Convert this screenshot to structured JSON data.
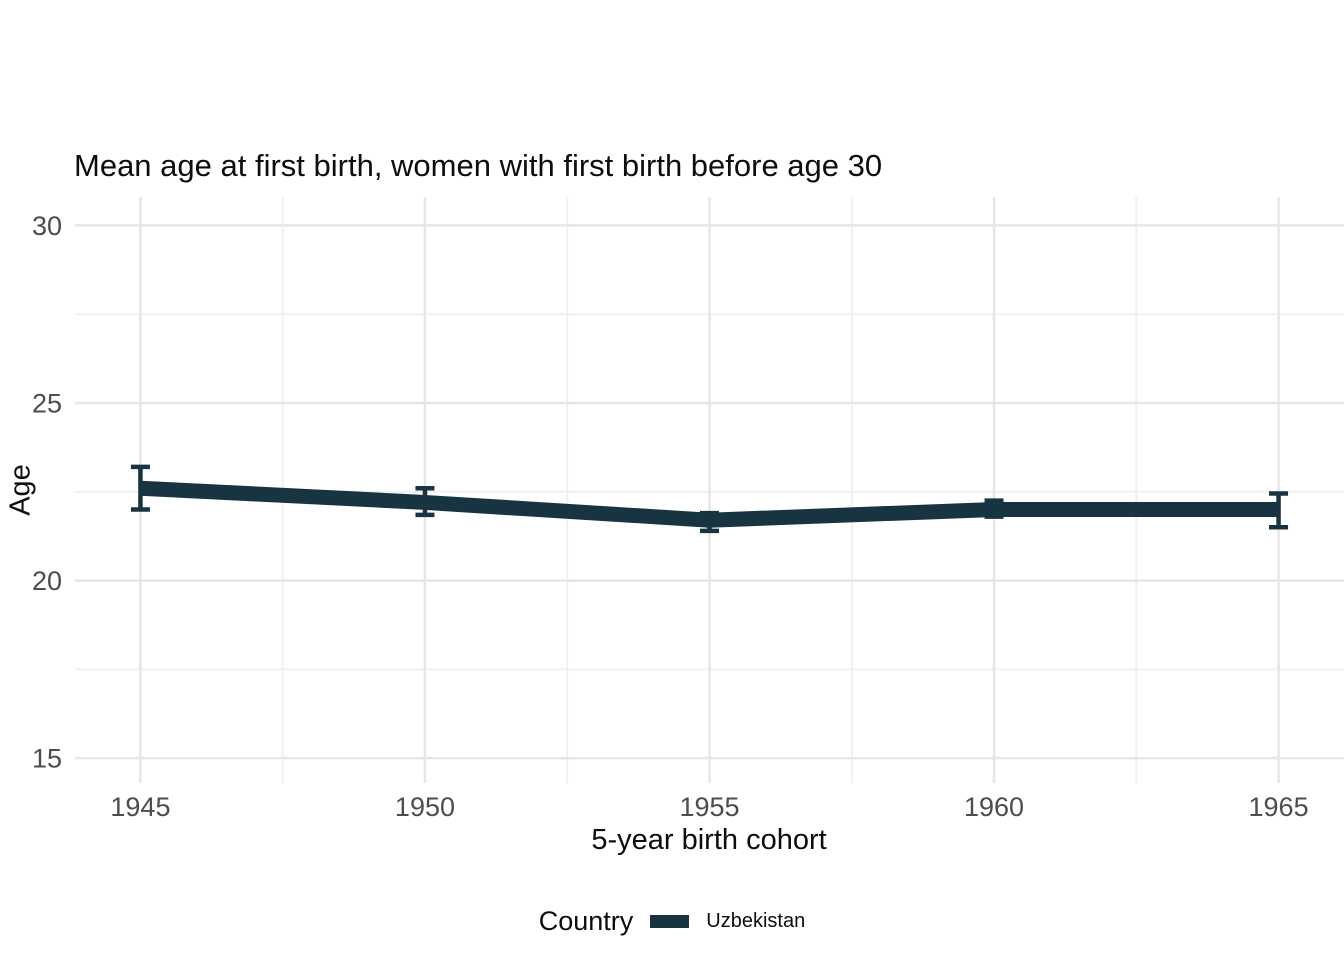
{
  "chart_data": {
    "type": "line",
    "title": "Mean age at first birth, women with first birth before age 30",
    "xlabel": "5-year birth cohort",
    "ylabel": "Age",
    "x": [
      1945,
      1950,
      1955,
      1960,
      1965
    ],
    "series": [
      {
        "name": "Uzbekistan",
        "color": "#173440",
        "mean": [
          22.6,
          22.2,
          21.7,
          22.0,
          22.0
        ],
        "ci_low": [
          22.0,
          21.85,
          21.4,
          21.8,
          21.5
        ],
        "ci_high": [
          23.2,
          22.6,
          21.9,
          22.25,
          22.45
        ]
      }
    ],
    "error_bars": true,
    "xlim": [
      1943.85,
      1966.15
    ],
    "ylim": [
      14.3,
      30.8
    ],
    "x_ticks": [
      "1945",
      "1950",
      "1955",
      "1960",
      "1965"
    ],
    "x_tick_values": [
      1945,
      1950,
      1955,
      1960,
      1965
    ],
    "y_ticks": [
      "15",
      "20",
      "25",
      "30"
    ],
    "y_tick_values": [
      15,
      20,
      25,
      30
    ],
    "x_minor": [
      1947.5,
      1952.5,
      1957.5,
      1962.5
    ],
    "y_minor": [
      17.5,
      22.5,
      27.5
    ],
    "grid": "on",
    "legend": {
      "title": "Country",
      "position": "bottom"
    }
  },
  "colors": {
    "background": "#ffffff",
    "grid_major": "#e6e6e6",
    "grid_minor": "#f0f0f0",
    "tick_label": "#4d4d4d",
    "text": "#0d0d0d"
  }
}
